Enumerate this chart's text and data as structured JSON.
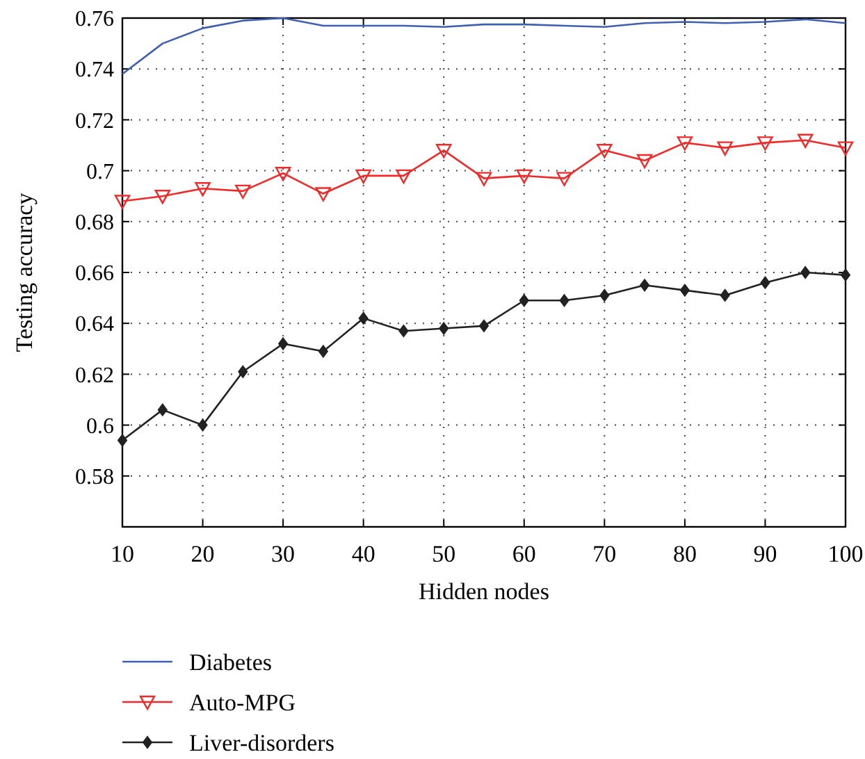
{
  "chart_data": {
    "type": "line",
    "xlabel": "Hidden nodes",
    "ylabel": "Testing accuracy",
    "x": [
      10,
      15,
      20,
      25,
      30,
      35,
      40,
      45,
      50,
      55,
      60,
      65,
      70,
      75,
      80,
      85,
      90,
      95,
      100
    ],
    "xlim": [
      10,
      100
    ],
    "xticks": [
      10,
      20,
      30,
      40,
      50,
      60,
      70,
      80,
      90,
      100
    ],
    "ylim": [
      0.56,
      0.76
    ],
    "yticks": [
      0.58,
      0.6,
      0.62,
      0.64,
      0.66,
      0.68,
      0.7,
      0.72,
      0.74,
      0.76
    ],
    "grid": true,
    "legend": "bottom left",
    "line_style": "solid",
    "series": [
      {
        "name": "Diabetes",
        "color": "#3f5fb0",
        "marker": "none",
        "values": [
          0.738,
          0.75,
          0.756,
          0.759,
          0.76,
          0.757,
          0.757,
          0.757,
          0.7565,
          0.7575,
          0.7575,
          0.757,
          0.7565,
          0.758,
          0.7585,
          0.758,
          0.7585,
          0.7595,
          0.758
        ]
      },
      {
        "name": "Auto-MPG",
        "color": "#ee2a2a",
        "marker": "triangle",
        "values": [
          0.688,
          0.69,
          0.693,
          0.692,
          0.699,
          0.691,
          0.698,
          0.698,
          0.708,
          0.697,
          0.698,
          0.697,
          0.708,
          0.704,
          0.711,
          0.709,
          0.711,
          0.712,
          0.709
        ]
      },
      {
        "name": "Liver-disorders",
        "color": "#222222",
        "marker": "diamond",
        "values": [
          0.594,
          0.606,
          0.6,
          0.621,
          0.632,
          0.629,
          0.642,
          0.637,
          0.638,
          0.639,
          0.649,
          0.649,
          0.651,
          0.655,
          0.653,
          0.651,
          0.656,
          0.66,
          0.659
        ]
      }
    ]
  }
}
